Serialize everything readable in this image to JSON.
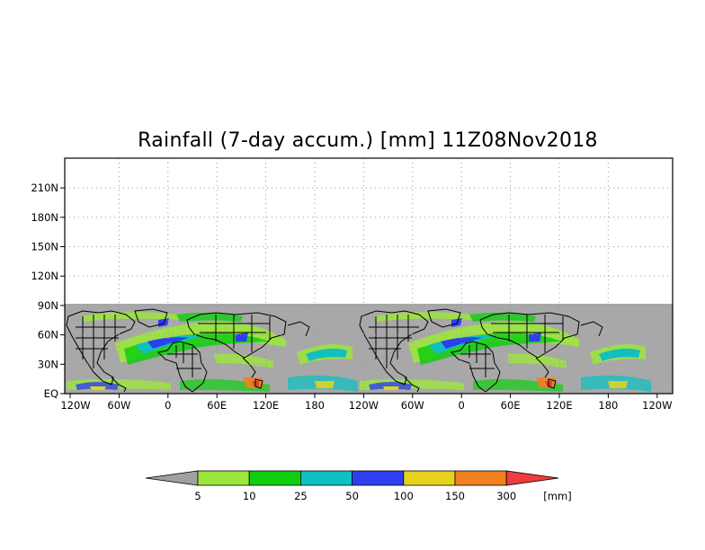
{
  "title": "Rainfall (7-day accum.) [mm] 11Z08Nov2018",
  "map": {
    "lat_ticks": [
      "EQ",
      "30N",
      "60N",
      "90N",
      "120N",
      "150N",
      "180N",
      "210N"
    ],
    "lon_ticks": [
      "120W",
      "60W",
      "0",
      "60E",
      "120E",
      "180",
      "120W",
      "60W",
      "0",
      "60E",
      "120E",
      "180",
      "120W"
    ],
    "grid": "dotted",
    "no_data_color": "#a8a8a8",
    "coastline_color": "#000000"
  },
  "colorbar": {
    "unit_label": "[mm]",
    "levels": [
      "5",
      "10",
      "25",
      "50",
      "100",
      "150",
      "300"
    ],
    "colors": [
      "#a0a0a0",
      "#9be63c",
      "#0fce0f",
      "#10c0c0",
      "#2d3ff0",
      "#e6d21e",
      "#f08020",
      "#f03c3c"
    ]
  }
}
